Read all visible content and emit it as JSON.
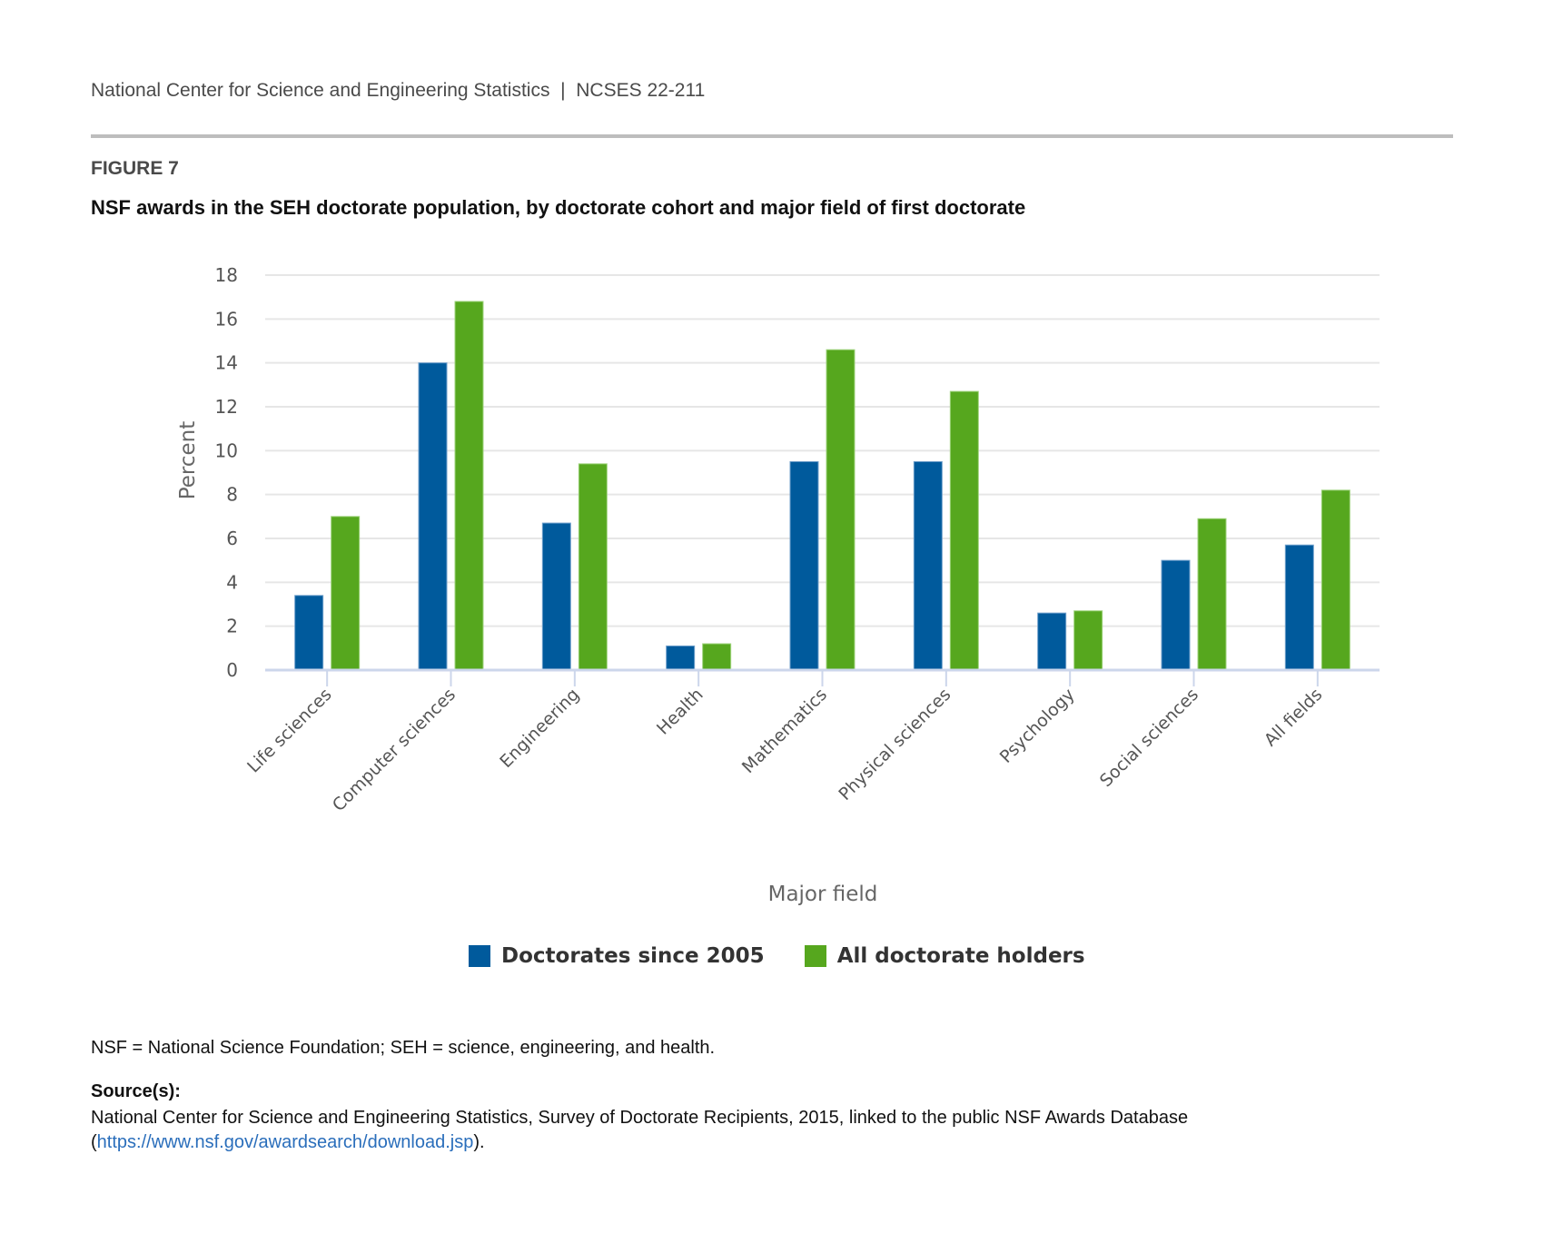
{
  "header": {
    "org": "National Center for Science and Engineering Statistics",
    "separator": "|",
    "report_id": "NCSES 22-211"
  },
  "figure": {
    "label": "FIGURE 7",
    "title": "NSF awards in the SEH doctorate population, by doctorate cohort and major field of first doctorate"
  },
  "chart_data": {
    "type": "bar",
    "title": "NSF awards in the SEH doctorate population, by doctorate cohort and major field of first doctorate",
    "xlabel": "Major field",
    "ylabel": "Percent",
    "ylim": [
      0,
      18
    ],
    "yticks": [
      0,
      2,
      4,
      6,
      8,
      10,
      12,
      14,
      16,
      18
    ],
    "grid": true,
    "legend_position": "bottom",
    "categories": [
      "Life sciences",
      "Computer sciences",
      "Engineering",
      "Health",
      "Mathematics",
      "Physical sciences",
      "Psychology",
      "Social sciences",
      "All fields"
    ],
    "series": [
      {
        "name": "Doctorates since 2005",
        "color": "#005a9c",
        "values": [
          3.4,
          14.0,
          6.7,
          1.1,
          9.5,
          9.5,
          2.6,
          5.0,
          5.7
        ]
      },
      {
        "name": "All doctorate holders",
        "color": "#56a71e",
        "values": [
          7.0,
          16.8,
          9.4,
          1.2,
          14.6,
          12.7,
          2.7,
          6.9,
          8.2
        ]
      }
    ]
  },
  "notes": {
    "abbreviations": "NSF = National Science Foundation; SEH = science, engineering, and health.",
    "source_heading": "Source(s):",
    "source_text": "National Center for Science and Engineering Statistics, Survey of Doctorate Recipients, 2015, linked to the public NSF Awards Database (",
    "source_link": "https://www.nsf.gov/awardsearch/download.jsp",
    "source_close": ")."
  },
  "colors": {
    "link": "#2a6ebb",
    "rule": "#bdbdbd"
  }
}
